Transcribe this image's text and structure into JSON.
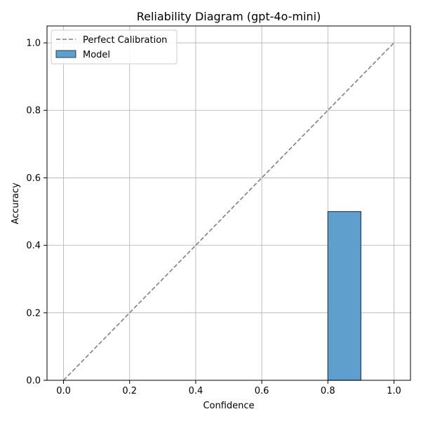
{
  "chart_data": {
    "type": "bar",
    "title": "Reliability Diagram (gpt-4o-mini)",
    "xlabel": "Confidence",
    "ylabel": "Accuracy",
    "xlim": [
      -0.05,
      1.05
    ],
    "ylim": [
      0,
      1.05
    ],
    "xticks": [
      "0.0",
      "0.2",
      "0.4",
      "0.6",
      "0.8",
      "1.0"
    ],
    "yticks": [
      "0.0",
      "0.2",
      "0.4",
      "0.6",
      "0.8",
      "1.0"
    ],
    "grid": true,
    "legend_placement": "top-left",
    "reference_line": {
      "name": "Perfect Calibration",
      "x": [
        0,
        1
      ],
      "y": [
        0,
        1
      ],
      "color": "#808080",
      "style": "dashed"
    },
    "series": [
      {
        "name": "Model",
        "color": "#5f9fcd",
        "edge_color": "#2f3f4f",
        "bins": [
          {
            "x_start": 0.8,
            "x_end": 0.9,
            "value": 0.5
          }
        ]
      }
    ]
  }
}
